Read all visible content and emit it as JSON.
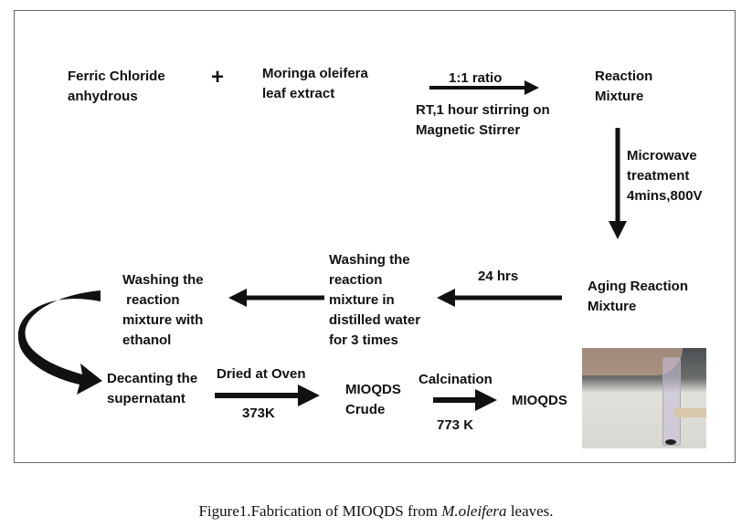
{
  "steps": {
    "ferric": "Ferric Chloride\nanhydrous",
    "plus": "+",
    "moringa": "Moringa oleifera\nleaf extract",
    "ratio": "1:1 ratio",
    "stirring": "RT,1 hour stirring on\nMagnetic Stirrer",
    "reaction_mixture": "Reaction\nMixture",
    "microwave": "Microwave\ntreatment\n4mins,800V",
    "aging": "Aging Reaction\nMixture",
    "hrs": "24 hrs",
    "washing_water": "Washing the\nreaction\nmixture in\ndistilled water\nfor 3 times",
    "washing_ethanol": "Washing the\n reaction\nmixture with\nethanol",
    "decanting": "Decanting the\nsupernatant",
    "dried": "Dried at Oven",
    "temp1": "373K",
    "crude": "MIOQDS\nCrude",
    "calcination": "Calcination",
    "temp2": "773 K",
    "final": "MIOQDS"
  },
  "caption": {
    "prefix": "Figure1.Fabrication of MIOQDS from ",
    "species": "M.oleifera",
    "suffix": " leaves."
  }
}
